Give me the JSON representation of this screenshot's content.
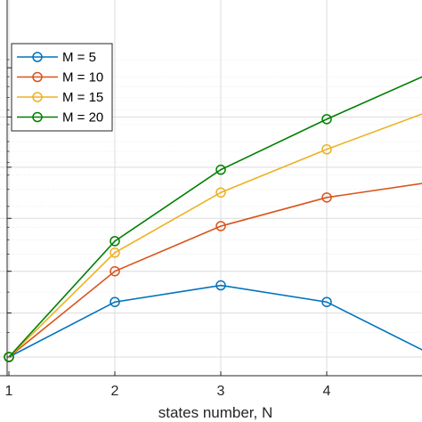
{
  "chart_data": {
    "type": "line",
    "title": "",
    "xlabel": "states number, N",
    "ylabel": "",
    "y_scale": "log",
    "grid": true,
    "minor_grid": true,
    "legend_position": "top-left",
    "x": [
      1,
      2,
      3,
      4,
      5
    ],
    "x_tick_labels": [
      "1",
      "2",
      "3",
      "4"
    ],
    "series": [
      {
        "name": "M = 5",
        "color": "#0072BD",
        "marker": "circle",
        "values": [
          1.0,
          1.8,
          2.15,
          1.8,
          1.02
        ]
      },
      {
        "name": "M = 10",
        "color": "#D95319",
        "marker": "circle",
        "values": [
          1.0,
          2.5,
          4.05,
          5.5,
          6.5
        ]
      },
      {
        "name": "M = 15",
        "color": "#EDB120",
        "marker": "circle",
        "values": [
          1.0,
          3.05,
          5.8,
          9.2,
          14.0
        ]
      },
      {
        "name": "M = 20",
        "color": "#008000",
        "marker": "circle",
        "values": [
          1.0,
          3.45,
          7.4,
          12.7,
          21.0
        ]
      }
    ]
  }
}
